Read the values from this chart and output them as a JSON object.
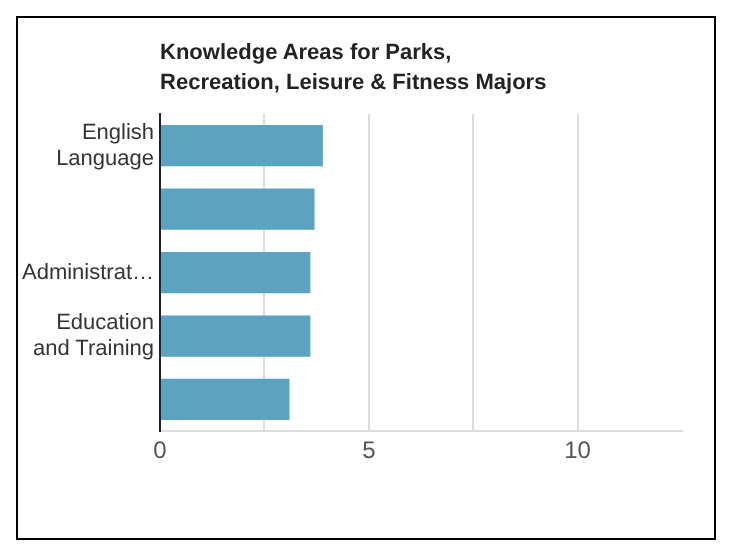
{
  "chart_data": {
    "type": "bar",
    "orientation": "horizontal",
    "title": "Knowledge Areas for Parks, Recreation, Leisure & Fitness Majors",
    "categories": [
      "English Language",
      null,
      "Administrat…",
      "Education and Training",
      null
    ],
    "values": [
      3.9,
      3.7,
      3.6,
      3.6,
      3.1
    ],
    "color": "#5ba3c0",
    "xlim": [
      0,
      12.5
    ],
    "xticks": [
      0,
      {
        "value": 2.5,
        "label": null
      },
      5,
      {
        "value": 7.5,
        "label": null
      },
      10
    ],
    "grid": "x"
  }
}
